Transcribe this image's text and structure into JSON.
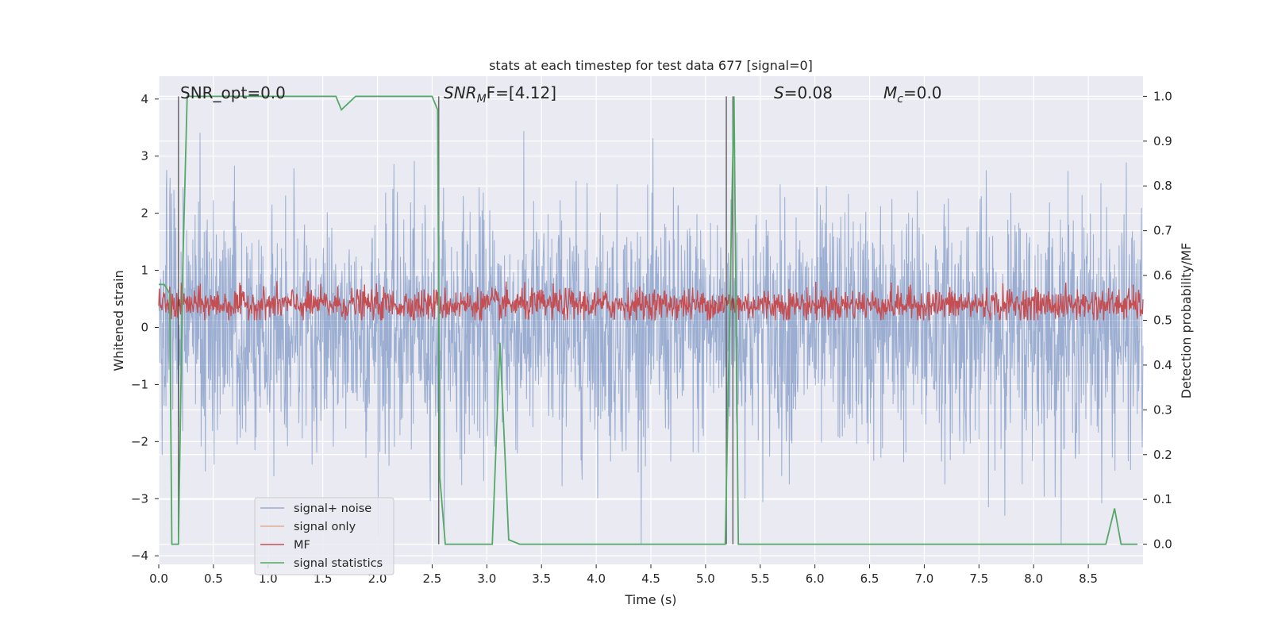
{
  "chart_data": {
    "type": "line",
    "title": "stats at each timestep for test data 677 [signal=0]",
    "xlabel": "Time (s)",
    "ylabel_left": "Whitened strain",
    "ylabel_right": "Detection probability/MF",
    "xlim": [
      0.0,
      9.0
    ],
    "ylim_left": [
      -4.15,
      4.4
    ],
    "ylim_right": [
      -0.045,
      1.045
    ],
    "x_ticks": [
      "0.0",
      "0.5",
      "1.0",
      "1.5",
      "2.0",
      "2.5",
      "3.0",
      "3.5",
      "4.0",
      "4.5",
      "5.0",
      "5.5",
      "6.0",
      "6.5",
      "7.0",
      "7.5",
      "8.0",
      "8.5"
    ],
    "y_ticks_left": [
      "4",
      "3",
      "2",
      "1",
      "0",
      "−1",
      "−2",
      "−3",
      "−4"
    ],
    "y_ticks_right": [
      "1.0",
      "0.9",
      "0.8",
      "0.7",
      "0.6",
      "0.5",
      "0.4",
      "0.3",
      "0.2",
      "0.1",
      "0.0"
    ],
    "grid": true,
    "legend_position": "lower-left",
    "annotations": {
      "snr_opt": "SNR_opt=0.0",
      "snr_mf_label": "SNR",
      "snr_mf_sub": "M",
      "snr_mf_tail": "F=[4.12]",
      "s_label": "S",
      "s_value": "=0.08",
      "mc_label": "M",
      "mc_sub": "c",
      "mc_value": "=0.0"
    },
    "series": [
      {
        "name": "signal+ noise",
        "color": "#4c72b0",
        "axis": "left",
        "note_range": [
          -3.8,
          3.75
        ]
      },
      {
        "name": "signal only",
        "color": "#dd8452",
        "axis": "left"
      },
      {
        "name": "MF",
        "color": "#c44e52",
        "axis": "right",
        "range": [
          0.5,
          0.61
        ]
      },
      {
        "name": "signal statistics",
        "color": "#55a868",
        "axis": "right",
        "x": [
          0.0,
          0.05,
          0.1,
          0.12,
          0.18,
          0.22,
          0.26,
          0.35,
          0.6,
          1.0,
          1.4,
          1.62,
          1.67,
          1.8,
          2.0,
          2.5,
          2.55,
          2.57,
          2.62,
          2.8,
          3.0,
          3.05,
          3.12,
          3.2,
          3.3,
          4.0,
          4.5,
          5.0,
          5.18,
          5.22,
          5.26,
          5.3,
          5.6,
          6.0,
          7.0,
          8.0,
          8.66,
          8.74,
          8.8,
          8.95
        ],
        "values": [
          0.58,
          0.58,
          0.56,
          0.0,
          0.0,
          0.62,
          1.0,
          1.0,
          1.0,
          1.0,
          1.0,
          1.0,
          0.97,
          1.0,
          1.0,
          1.0,
          0.97,
          0.15,
          0.0,
          0.0,
          0.0,
          0.0,
          0.45,
          0.01,
          0.0,
          0.0,
          0.0,
          0.0,
          0.0,
          0.5,
          1.0,
          0.0,
          0.0,
          0.0,
          0.0,
          0.0,
          0.0,
          0.08,
          0.0,
          0.0
        ]
      }
    ],
    "vertical_lines_x": [
      0.18,
      2.56,
      5.19,
      5.25
    ]
  }
}
